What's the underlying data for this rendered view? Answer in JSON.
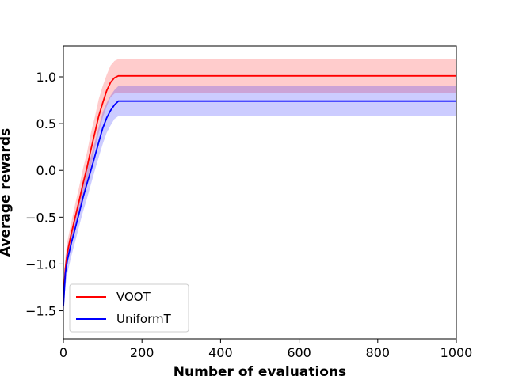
{
  "chart_data": {
    "type": "line",
    "title": "",
    "xlabel": "Number of evaluations",
    "ylabel": "Average rewards",
    "xlim": [
      0,
      1000
    ],
    "ylim": [
      -1.8,
      1.33
    ],
    "xticks": [
      0,
      200,
      400,
      600,
      800,
      1000
    ],
    "yticks": [
      -1.5,
      -1.0,
      -0.5,
      0.0,
      0.5,
      1.0
    ],
    "xtick_labels": [
      "0",
      "200",
      "400",
      "600",
      "800",
      "1000"
    ],
    "ytick_labels": [
      "−1.5",
      "−1.0",
      "−0.5",
      "0.0",
      "0.5",
      "1.0"
    ],
    "grid": false,
    "legend_position": "lower-left",
    "series": [
      {
        "name": "VOOT",
        "color": "#ff0000",
        "band_color": "#ff0000",
        "x": [
          0,
          5,
          10,
          20,
          30,
          40,
          50,
          60,
          70,
          80,
          90,
          100,
          110,
          120,
          130,
          140,
          150,
          200,
          400,
          600,
          800,
          1000
        ],
        "y": [
          -1.4,
          -1.05,
          -0.88,
          -0.68,
          -0.5,
          -0.33,
          -0.14,
          0.03,
          0.22,
          0.4,
          0.58,
          0.72,
          0.85,
          0.94,
          0.99,
          1.01,
          1.01,
          1.01,
          1.01,
          1.01,
          1.01,
          1.01
        ],
        "lower": [
          -1.55,
          -1.18,
          -1.0,
          -0.8,
          -0.64,
          -0.48,
          -0.3,
          -0.13,
          0.04,
          0.23,
          0.4,
          0.56,
          0.68,
          0.78,
          0.82,
          0.83,
          0.83,
          0.83,
          0.83,
          0.83,
          0.83,
          0.83
        ],
        "upper": [
          -1.25,
          -0.92,
          -0.76,
          -0.56,
          -0.36,
          -0.18,
          0.02,
          0.19,
          0.4,
          0.57,
          0.76,
          0.9,
          1.02,
          1.12,
          1.17,
          1.19,
          1.19,
          1.19,
          1.19,
          1.19,
          1.19,
          1.19
        ]
      },
      {
        "name": "UniformT",
        "color": "#0000ff",
        "band_color": "#0000ff",
        "x": [
          0,
          5,
          10,
          20,
          30,
          40,
          50,
          60,
          70,
          80,
          90,
          100,
          110,
          120,
          130,
          140,
          150,
          200,
          400,
          600,
          800,
          1000
        ],
        "y": [
          -1.45,
          -1.1,
          -0.96,
          -0.78,
          -0.62,
          -0.46,
          -0.29,
          -0.14,
          0.0,
          0.15,
          0.3,
          0.45,
          0.56,
          0.64,
          0.7,
          0.74,
          0.74,
          0.74,
          0.74,
          0.74,
          0.74,
          0.74
        ],
        "lower": [
          -1.6,
          -1.24,
          -1.1,
          -0.92,
          -0.76,
          -0.6,
          -0.44,
          -0.3,
          -0.15,
          0.0,
          0.14,
          0.28,
          0.4,
          0.48,
          0.55,
          0.58,
          0.58,
          0.58,
          0.58,
          0.58,
          0.58,
          0.58
        ],
        "upper": [
          -1.3,
          -0.96,
          -0.82,
          -0.64,
          -0.48,
          -0.32,
          -0.14,
          0.02,
          0.15,
          0.3,
          0.46,
          0.62,
          0.72,
          0.8,
          0.86,
          0.9,
          0.9,
          0.9,
          0.9,
          0.9,
          0.9,
          0.9
        ]
      }
    ]
  }
}
